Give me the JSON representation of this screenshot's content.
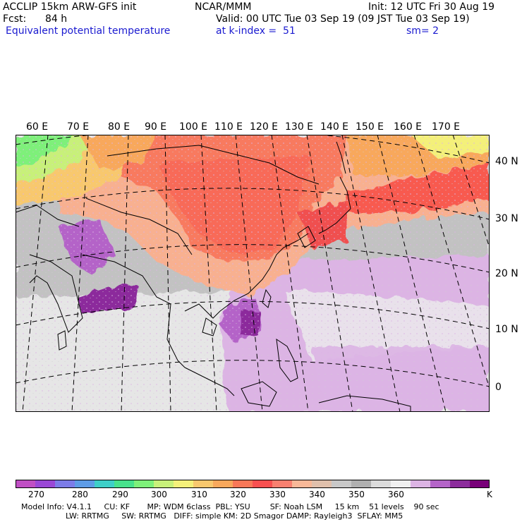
{
  "header": {
    "model": "ACCLIP 15km ARW-GFS init",
    "org": "NCAR/MMM",
    "init": "Init: 12 UTC Fri 30 Aug 19",
    "fcst_label": "Fcst:",
    "fcst_value": "84 h",
    "valid": "Valid: 00 UTC Tue 03 Sep 19 (09 JST Tue 03 Sep 19)",
    "field": "Equivalent potential temperature",
    "level": "at k-index =  51",
    "smooth": "sm= 2"
  },
  "lon_labels": [
    "60 E",
    "70 E",
    "80 E",
    "90 E",
    "100 E",
    "110 E",
    "120 E",
    "130 E",
    "140 E",
    "150 E",
    "160 E",
    "170 E"
  ],
  "lat_labels": [
    "40 N",
    "30 N",
    "20 N",
    "10 N",
    "0"
  ],
  "colorbar": {
    "colors": [
      "#c04fc4",
      "#9a48d6",
      "#7c7ce8",
      "#5e9ce6",
      "#3ecfc8",
      "#48e28c",
      "#7ef07a",
      "#c8f07a",
      "#f4f07a",
      "#f8c86e",
      "#f8a85c",
      "#f87858",
      "#f85050",
      "#f88070",
      "#f8b898",
      "#e0c0ac",
      "#c8c8c8",
      "#b0b0b0",
      "#dcdcdc",
      "#f0f0f0",
      "#dcb4e4",
      "#b464c8",
      "#8c2c9c",
      "#780078"
    ],
    "labels": [
      "270",
      "280",
      "290",
      "300",
      "310",
      "320",
      "330",
      "340",
      "350",
      "360"
    ],
    "unit": "K"
  },
  "footer": {
    "line1": "Model Info: V4.1.1     CU: KF       MP: WDM 6class  PBL: YSU        SF: Noah LSM     15 km    51 levels    90 sec",
    "line2": "                  LW: RRTMG     SW: RRTMG   DIFF: simple KM: 2D Smagor DAMP: Rayleigh3  SFLAY: MM5"
  }
}
